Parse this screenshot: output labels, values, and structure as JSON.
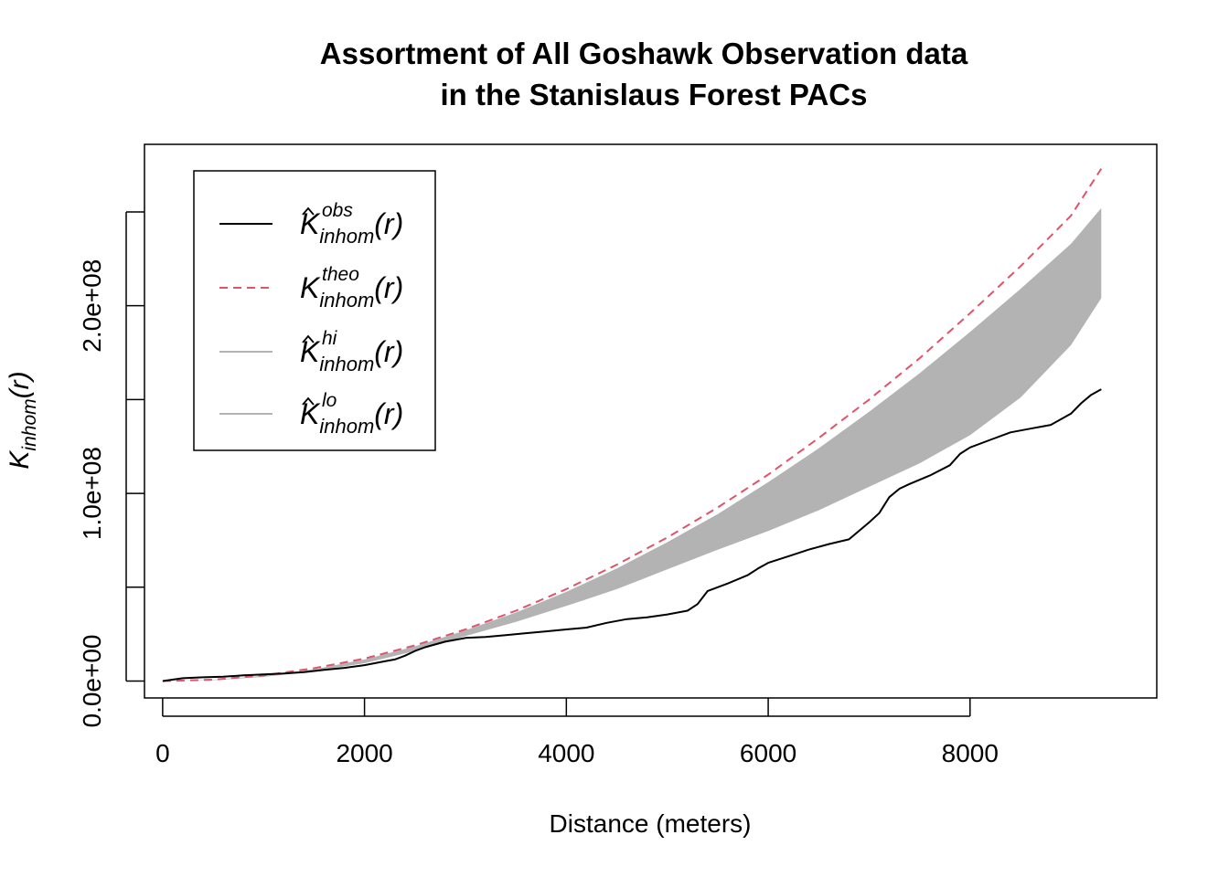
{
  "chart_data": {
    "type": "line",
    "title": [
      "Assortment of All Goshawk Observation data",
      "in the Stanislaus Forest PACs"
    ],
    "xlabel": "Distance (meters)",
    "ylabel": {
      "main": "K",
      "sub": "inhom",
      "arg": "(r)"
    },
    "xlim": [
      -180,
      9850
    ],
    "ylim": [
      -9000000,
      286000000
    ],
    "x_ticks": [
      0,
      2000,
      4000,
      6000,
      8000
    ],
    "x_tick_labels": [
      "0",
      "2000",
      "4000",
      "6000",
      "8000"
    ],
    "y_ticks": [
      0,
      50000000,
      100000000,
      150000000,
      200000000,
      250000000
    ],
    "y_tick_labels": [
      "0.0e+00",
      "",
      "1.0e+08",
      "",
      "2.0e+08",
      ""
    ],
    "grid": false,
    "legend_position": "top-left",
    "legend": [
      {
        "key": "obs",
        "main": "K",
        "hat": true,
        "sup": "obs",
        "sub": "inhom",
        "arg": "(r)",
        "color": "#000000",
        "dash": "solid"
      },
      {
        "key": "theo",
        "main": "K",
        "hat": false,
        "sup": "theo",
        "sub": "inhom",
        "arg": "(r)",
        "color": "#DF536B",
        "dash": "dashed"
      },
      {
        "key": "hi",
        "main": "K",
        "hat": true,
        "sup": "hi",
        "sub": "inhom",
        "arg": "(r)",
        "color": "#B3B3B3",
        "dash": "solid"
      },
      {
        "key": "lo",
        "main": "K",
        "hat": true,
        "sup": "lo",
        "sub": "inhom",
        "arg": "(r)",
        "color": "#B3B3B3",
        "dash": "solid"
      }
    ],
    "colors": {
      "obs": "#000000",
      "theo": "#DF536B",
      "envelope": "#B3B3B3"
    },
    "series": [
      {
        "name": "obs",
        "x": [
          0,
          200,
          400,
          600,
          800,
          1000,
          1200,
          1400,
          1600,
          1800,
          2000,
          2200,
          2300,
          2400,
          2500,
          2600,
          2800,
          3000,
          3200,
          3400,
          3600,
          3800,
          4000,
          4200,
          4400,
          4600,
          4800,
          5000,
          5200,
          5300,
          5400,
          5600,
          5800,
          5900,
          6000,
          6200,
          6400,
          6600,
          6800,
          7000,
          7100,
          7200,
          7300,
          7400,
          7600,
          7800,
          7900,
          8000,
          8200,
          8400,
          8600,
          8800,
          9000,
          9100,
          9200,
          9300
        ],
        "y": [
          0,
          1500000,
          2000000,
          2300000,
          3000000,
          3500000,
          4000000,
          4800000,
          6000000,
          7000000,
          8500000,
          10500000,
          11500000,
          13500000,
          16000000,
          18000000,
          21000000,
          23000000,
          23500000,
          24500000,
          25500000,
          26500000,
          27500000,
          28500000,
          31000000,
          33000000,
          34000000,
          35500000,
          37500000,
          41000000,
          48000000,
          52000000,
          56500000,
          60000000,
          63000000,
          66500000,
          70000000,
          73000000,
          75500000,
          84500000,
          89500000,
          98000000,
          102500000,
          105000000,
          109500000,
          115000000,
          121000000,
          124500000,
          128500000,
          132500000,
          134500000,
          136500000,
          142500000,
          148000000,
          152500000,
          155500000
        ]
      },
      {
        "name": "theo",
        "x": [
          0,
          500,
          1000,
          1500,
          2000,
          2500,
          3000,
          3500,
          4000,
          4500,
          5000,
          5500,
          6000,
          6500,
          7000,
          7500,
          8000,
          8500,
          9000,
          9300
        ],
        "y": [
          0,
          750000,
          3000000,
          6800000,
          12000000,
          19000000,
          27500000,
          37500000,
          49000000,
          62000000,
          76500000,
          92500000,
          110000000,
          129500000,
          150000000,
          172000000,
          196000000,
          221000000,
          248000000,
          273000000
        ]
      },
      {
        "name": "hi",
        "x": [
          0,
          500,
          1000,
          1500,
          2000,
          2500,
          3000,
          3500,
          4000,
          4500,
          5000,
          5500,
          6000,
          6500,
          7000,
          7500,
          8000,
          8500,
          9000,
          9300
        ],
        "y": [
          0,
          700000,
          2800000,
          6300000,
          11500000,
          18500000,
          27000000,
          36500000,
          47500000,
          60000000,
          74000000,
          89000000,
          106000000,
          124000000,
          143500000,
          164000000,
          186000000,
          209000000,
          233000000,
          252000000
        ]
      },
      {
        "name": "lo",
        "x": [
          0,
          500,
          1000,
          1500,
          2000,
          2500,
          3000,
          3500,
          4000,
          4500,
          5000,
          5500,
          6000,
          6500,
          7000,
          7500,
          8000,
          8500,
          9000,
          9300
        ],
        "y": [
          0,
          500000,
          2200000,
          5200000,
          9500000,
          16000000,
          24000000,
          31500000,
          40000000,
          49000000,
          59500000,
          70000000,
          80000000,
          91000000,
          103500000,
          116000000,
          131000000,
          151000000,
          179000000,
          204000000
        ]
      }
    ]
  }
}
